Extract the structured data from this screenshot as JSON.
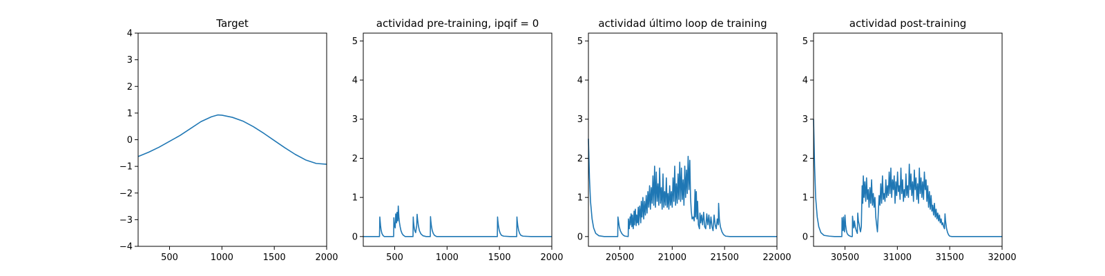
{
  "chart_data": [
    {
      "type": "line",
      "title": "Target",
      "xlim": [
        200,
        2000
      ],
      "ylim": [
        -4,
        4
      ],
      "xticks": [
        500,
        1000,
        1500,
        2000
      ],
      "yticks": [
        -4,
        -3,
        -2,
        -1,
        0,
        1,
        2,
        3,
        4
      ],
      "color": "#1f77b4",
      "series": [
        {
          "x": [
            200,
            300,
            400,
            500,
            600,
            700,
            800,
            900,
            960,
            1000,
            1100,
            1200,
            1300,
            1400,
            1500,
            1600,
            1700,
            1800,
            1900,
            2000
          ],
          "y": [
            -0.63,
            -0.47,
            -0.28,
            -0.06,
            0.16,
            0.42,
            0.68,
            0.86,
            0.93,
            0.92,
            0.84,
            0.7,
            0.49,
            0.24,
            -0.03,
            -0.3,
            -0.55,
            -0.76,
            -0.89,
            -0.92
          ]
        }
      ]
    },
    {
      "type": "line",
      "title": "actividad pre-training, ipqif = 0",
      "xlim": [
        200,
        2000
      ],
      "ylim": [
        -0.25,
        5.2
      ],
      "xticks": [
        500,
        1000,
        1500,
        2000
      ],
      "yticks": [
        0,
        1,
        2,
        3,
        4,
        5
      ],
      "color": "#1f77b4",
      "series": [
        {
          "x": [
            200,
            355,
            358,
            361,
            365,
            370,
            378,
            388,
            400,
            490,
            492,
            494,
            498,
            505,
            510,
            518,
            522,
            530,
            534,
            540,
            546,
            552,
            560,
            570,
            580,
            600,
            675,
            677,
            679,
            685,
            692,
            700,
            710,
            714,
            718,
            726,
            736,
            750,
            770,
            800,
            840,
            842,
            845,
            850,
            858,
            868,
            880,
            900,
            1000,
            1100,
            1200,
            1300,
            1400,
            1480,
            1482,
            1485,
            1490,
            1498,
            1508,
            1520,
            1540,
            1600,
            1665,
            1667,
            1670,
            1675,
            1683,
            1693,
            1705,
            1725,
            1800,
            1900,
            2000
          ],
          "y": [
            0,
            0,
            0.5,
            0.4,
            0.28,
            0.17,
            0.08,
            0.03,
            0,
            0,
            0.48,
            0.4,
            0.28,
            0.22,
            0.58,
            0.35,
            0.62,
            0.4,
            0.78,
            0.5,
            0.35,
            0.25,
            0.15,
            0.08,
            0.04,
            0,
            0,
            0.5,
            0.4,
            0.25,
            0.15,
            0.1,
            0.28,
            0.57,
            0.45,
            0.28,
            0.15,
            0.07,
            0.02,
            0,
            0,
            0.51,
            0.4,
            0.28,
            0.16,
            0.08,
            0.03,
            0,
            0,
            0,
            0,
            0,
            0,
            0,
            0.5,
            0.4,
            0.28,
            0.16,
            0.08,
            0.03,
            0.01,
            0,
            0,
            0.5,
            0.4,
            0.28,
            0.16,
            0.08,
            0.03,
            0.01,
            0,
            0,
            0
          ]
        }
      ]
    },
    {
      "type": "line",
      "title": "actividad último loop de training",
      "xlim": [
        20200,
        22000
      ],
      "ylim": [
        -0.25,
        5.2
      ],
      "xticks": [
        20500,
        21000,
        21500,
        22000
      ],
      "yticks": [
        0,
        1,
        2,
        3,
        4,
        5
      ],
      "color": "#1f77b4",
      "series": [
        {
          "x": [
            20200,
            20210,
            20220,
            20235,
            20250,
            20270,
            20300,
            20350,
            20400,
            20480,
            20482,
            20488,
            20495,
            20505,
            20518,
            20535,
            20550,
            20580,
            20582,
            20590,
            20598,
            20600,
            20608,
            20615,
            20620,
            20628,
            20636,
            20640,
            20648,
            20656,
            20660,
            20668,
            20676,
            20680,
            20690,
            20700,
            20705,
            20712,
            20720,
            20728,
            20736,
            20744,
            20752,
            20760,
            20768,
            20776,
            20784,
            20792,
            20800,
            20808,
            20816,
            20824,
            20832,
            20840,
            20848,
            20856,
            20864,
            20872,
            20880,
            20888,
            20896,
            20904,
            20912,
            20920,
            20928,
            20936,
            20944,
            20952,
            20960,
            20968,
            20976,
            20984,
            20992,
            21000,
            21008,
            21016,
            21024,
            21032,
            21040,
            21048,
            21056,
            21064,
            21072,
            21080,
            21088,
            21096,
            21104,
            21112,
            21120,
            21128,
            21136,
            21144,
            21152,
            21160,
            21168,
            21175,
            21182,
            21190,
            21200,
            21210,
            21218,
            21222,
            21230,
            21236,
            21242,
            21250,
            21260,
            21265,
            21272,
            21280,
            21290,
            21300,
            21310,
            21320,
            21330,
            21340,
            21350,
            21360,
            21370,
            21380,
            21390,
            21400,
            21410,
            21420,
            21430,
            21440,
            21443,
            21450,
            21460,
            21475,
            21490,
            21510,
            21550,
            21600,
            21700,
            21800,
            21900,
            22000
          ],
          "y": [
            2.5,
            1.5,
            0.9,
            0.45,
            0.22,
            0.08,
            0.02,
            0,
            0,
            0,
            0.5,
            0.38,
            0.25,
            0.15,
            0.08,
            0.03,
            0.01,
            0,
            0.45,
            0.2,
            0.5,
            0.3,
            0.58,
            0.25,
            0.55,
            0.2,
            0.65,
            0.3,
            0.7,
            0.28,
            0.55,
            0.35,
            0.75,
            0.3,
            0.78,
            0.35,
            0.9,
            0.5,
            1.0,
            0.45,
            0.9,
            0.55,
            1.05,
            0.6,
            1.15,
            0.75,
            1.3,
            0.7,
            1.25,
            0.85,
            1.55,
            0.8,
            1.8,
            0.75,
            1.65,
            0.9,
            1.35,
            0.8,
            1.75,
            0.85,
            1.25,
            0.7,
            1.6,
            0.75,
            1.15,
            0.8,
            1.5,
            0.75,
            1.1,
            0.7,
            1.3,
            0.8,
            1.15,
            0.75,
            1.5,
            0.9,
            1.8,
            0.8,
            1.35,
            0.85,
            1.6,
            0.95,
            1.9,
            0.9,
            1.75,
            0.95,
            1.45,
            0.8,
            1.8,
            1.0,
            1.7,
            1.1,
            2.05,
            1.2,
            1.95,
            1.0,
            0.65,
            0.45,
            0.5,
            0.4,
            1.2,
            0.5,
            1.15,
            0.45,
            0.9,
            0.3,
            0.2,
            0.6,
            0.35,
            0.55,
            0.3,
            0.62,
            0.25,
            0.2,
            0.58,
            0.3,
            0.55,
            0.2,
            0.5,
            0.25,
            0.15,
            0.55,
            0.3,
            0.2,
            0.45,
            0.3,
            0.85,
            0.45,
            0.25,
            0.12,
            0.05,
            0.01,
            0,
            0,
            0,
            0,
            0,
            0
          ]
        }
      ]
    },
    {
      "type": "line",
      "title": "actividad post-training",
      "xlim": [
        30200,
        32000
      ],
      "ylim": [
        -0.25,
        5.2
      ],
      "xticks": [
        30500,
        31000,
        31500,
        32000
      ],
      "yticks": [
        0,
        1,
        2,
        3,
        4,
        5
      ],
      "color": "#1f77b4",
      "series": [
        {
          "x": [
            30200,
            30210,
            30220,
            30235,
            30250,
            30270,
            30300,
            30350,
            30400,
            30450,
            30470,
            30472,
            30478,
            30482,
            30486,
            30490,
            30496,
            30500,
            30506,
            30512,
            30518,
            30525,
            30535,
            30550,
            30560,
            30570,
            30572,
            30578,
            30584,
            30590,
            30598,
            30608,
            30618,
            30622,
            30628,
            30636,
            30642,
            30648,
            30656,
            30664,
            30670,
            30675,
            30682,
            30690,
            30698,
            30706,
            30714,
            30722,
            30730,
            30738,
            30746,
            30754,
            30762,
            30770,
            30778,
            30786,
            30794,
            30802,
            30810,
            30818,
            30826,
            30834,
            30842,
            30850,
            30858,
            30866,
            30874,
            30882,
            30890,
            30898,
            30906,
            30914,
            30922,
            30930,
            30938,
            30946,
            30954,
            30962,
            30970,
            30978,
            30986,
            30994,
            31002,
            31010,
            31018,
            31026,
            31034,
            31042,
            31050,
            31058,
            31066,
            31074,
            31082,
            31090,
            31098,
            31106,
            31114,
            31122,
            31130,
            31138,
            31146,
            31154,
            31162,
            31170,
            31178,
            31186,
            31194,
            31202,
            31210,
            31218,
            31226,
            31234,
            31242,
            31250,
            31258,
            31266,
            31274,
            31282,
            31290,
            31298,
            31306,
            31314,
            31322,
            31330,
            31338,
            31346,
            31354,
            31362,
            31370,
            31378,
            31386,
            31394,
            31402,
            31410,
            31418,
            31426,
            31434,
            31442,
            31450,
            31455,
            31460,
            31470,
            31480,
            31490,
            31500,
            31520,
            31550,
            31600,
            31700,
            31800,
            31900,
            32000
          ],
          "y": [
            3.0,
            1.8,
            1.0,
            0.5,
            0.25,
            0.1,
            0.03,
            0.01,
            0,
            0,
            0,
            0.48,
            0.25,
            0.15,
            0.5,
            0.25,
            0.12,
            0.55,
            0.3,
            0.18,
            0.1,
            0.06,
            0.03,
            0.01,
            0,
            0,
            0.52,
            0.35,
            0.22,
            0.4,
            0.25,
            0.15,
            0.08,
            0.6,
            0.4,
            0.3,
            0.2,
            0.12,
            0.25,
            1.3,
            0.85,
            1.55,
            1.0,
            1.4,
            0.9,
            1.5,
            0.95,
            1.2,
            0.75,
            1.25,
            0.85,
            1.45,
            0.8,
            1.1,
            0.75,
            1.0,
            0.5,
            0.3,
            0.12,
            0.6,
            1.05,
            0.8,
            1.35,
            0.85,
            1.55,
            0.95,
            1.1,
            0.9,
            1.45,
            1.0,
            1.3,
            1.05,
            1.65,
            1.1,
            1.75,
            1.0,
            1.45,
            1.2,
            1.55,
            0.85,
            1.4,
            1.05,
            1.65,
            1.15,
            1.3,
            0.95,
            1.75,
            1.1,
            1.45,
            0.9,
            1.2,
            1.0,
            1.6,
            1.05,
            1.3,
            1.0,
            1.85,
            1.2,
            1.6,
            1.05,
            1.4,
            0.9,
            1.7,
            1.2,
            1.5,
            0.95,
            1.35,
            0.85,
            1.75,
            1.1,
            1.5,
            1.0,
            1.4,
            0.95,
            1.65,
            1.2,
            1.45,
            0.9,
            1.3,
            0.75,
            1.15,
            0.7,
            1.05,
            0.65,
            0.8,
            0.55,
            0.85,
            0.5,
            0.7,
            0.45,
            0.6,
            0.4,
            0.55,
            0.35,
            0.45,
            0.3,
            0.35,
            0.25,
            0.2,
            0.58,
            0.4,
            0.2,
            0.1,
            0.04,
            0.01,
            0,
            0,
            0,
            0,
            0,
            0,
            0
          ]
        }
      ]
    }
  ]
}
